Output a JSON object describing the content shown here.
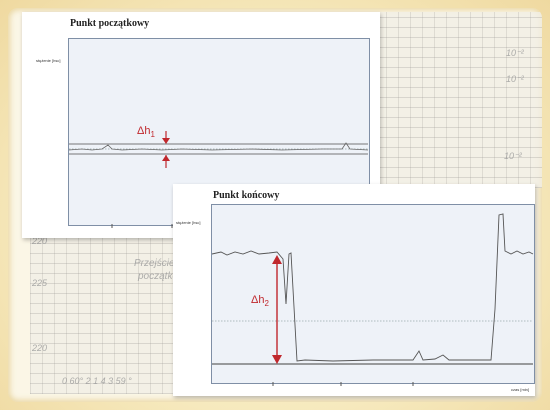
{
  "panel_start": {
    "title": "Punkt początkowy",
    "y_axis_label": "stężenie [hsc]",
    "delta_label": "Δh",
    "delta_sub": "1"
  },
  "panel_end": {
    "title": "Punkt końcowy",
    "y_axis_label": "stężenie [hsc]",
    "x_axis_label": "czas [min]",
    "delta_label": "Δh",
    "delta_sub": "2"
  },
  "background_text": {
    "left_numbers": [
      "220",
      "225",
      "220"
    ],
    "faded_text_1": "Przejście",
    "faded_text_2": "początkowe",
    "bottom_scale": "0 60°  2 1 4 3 59 °",
    "right_numbers": [
      "10⁻²",
      "10⁻²",
      "10⁻²"
    ]
  },
  "colors": {
    "marker": "#c0282d",
    "plot_bg": "#eef2f8",
    "trace": "#555555"
  }
}
